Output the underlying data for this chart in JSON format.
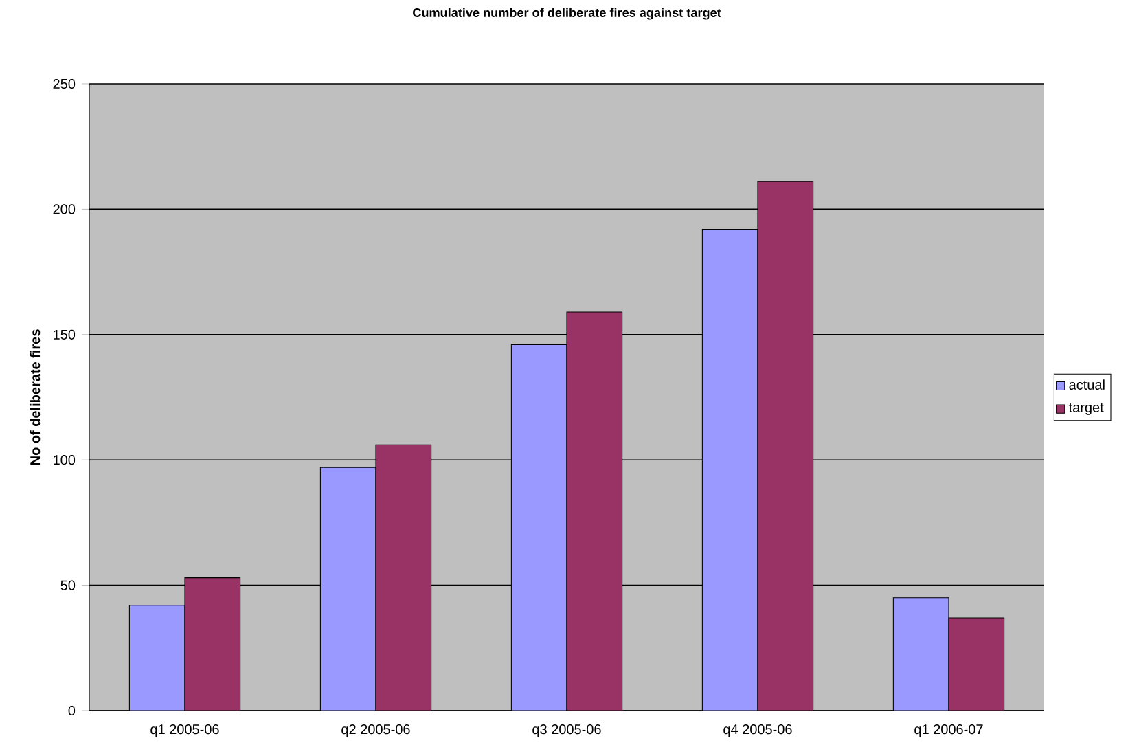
{
  "chart_data": {
    "type": "bar",
    "title": "Cumulative number of deliberate fires against target",
    "ylabel": "No of deliberate fires",
    "categories": [
      "q1 2005-06",
      "q2 2005-06",
      "q3 2005-06",
      "q4 2005-06",
      "q1 2006-07"
    ],
    "series": [
      {
        "name": "actual",
        "color": "#9999ff",
        "values": [
          42,
          97,
          146,
          192,
          45
        ]
      },
      {
        "name": "target",
        "color": "#993366",
        "values": [
          53,
          106,
          159,
          211,
          37
        ]
      }
    ],
    "ylim": [
      0,
      250
    ],
    "yticks": [
      0,
      50,
      100,
      150,
      200,
      250
    ],
    "grid": "y",
    "legend": "right"
  }
}
